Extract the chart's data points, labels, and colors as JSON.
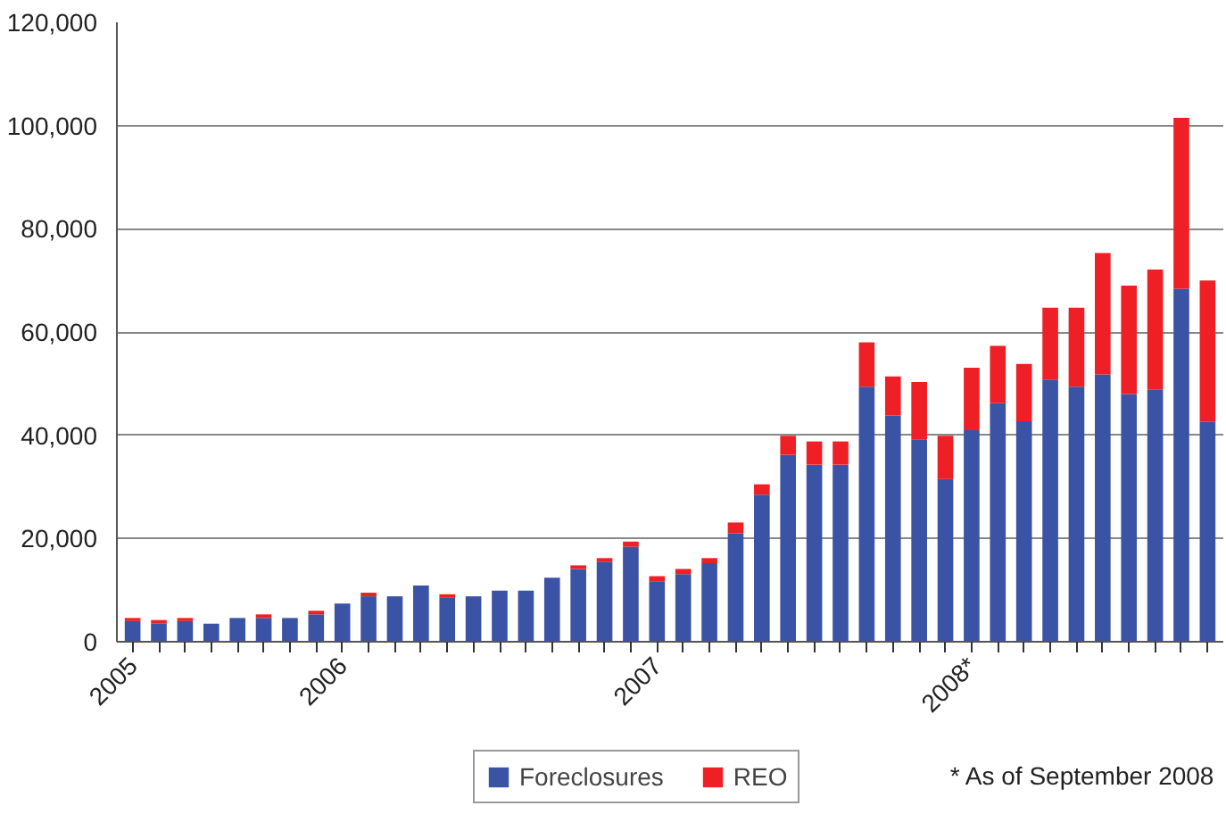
{
  "chart_data": {
    "type": "bar",
    "stacked": true,
    "categories": [
      "2005",
      null,
      null,
      null,
      null,
      null,
      null,
      null,
      "2006",
      null,
      null,
      null,
      null,
      null,
      null,
      null,
      null,
      null,
      null,
      null,
      "2007",
      null,
      null,
      null,
      null,
      null,
      null,
      null,
      null,
      null,
      null,
      null,
      "2008*",
      null,
      null,
      null,
      null,
      null,
      null,
      null,
      null,
      null
    ],
    "series": [
      {
        "name": "Foreclosures",
        "color": "#3a53a4",
        "values": [
          4000,
          3500,
          4000,
          3500,
          4600,
          4600,
          4600,
          5300,
          7400,
          8800,
          8800,
          10900,
          8500,
          8800,
          9900,
          9900,
          12400,
          14100,
          15500,
          18400,
          11700,
          13100,
          15200,
          21000,
          28500,
          36200,
          34300,
          34300,
          49400,
          43800,
          39200,
          31500,
          41000,
          46200,
          42700,
          50800,
          49400,
          51800,
          48000,
          48800,
          68400,
          42600
        ]
      },
      {
        "name": "REO",
        "color": "#ee1f25",
        "values": [
          600,
          700,
          600,
          null,
          null,
          700,
          null,
          700,
          null,
          700,
          null,
          null,
          700,
          null,
          null,
          null,
          null,
          700,
          700,
          1000,
          1000,
          1000,
          1000,
          2100,
          2000,
          3700,
          4500,
          4500,
          8600,
          7600,
          11100,
          8400,
          12100,
          11100,
          11100,
          13900,
          15300,
          23500,
          21000,
          23300,
          33100,
          27400
        ]
      }
    ],
    "ylim": [
      0,
      120000
    ],
    "yticks": [
      {
        "value": 0,
        "label": "0"
      },
      {
        "value": 20000,
        "label": "20,000"
      },
      {
        "value": 40000,
        "label": "40,000"
      },
      {
        "value": 60000,
        "label": "60,000"
      },
      {
        "value": 80000,
        "label": "80,000"
      },
      {
        "value": 100000,
        "label": "100,000"
      },
      {
        "value": 120000,
        "label": "120,000"
      }
    ],
    "grid": "y",
    "legend": "bottom",
    "annotations": [
      "* As of September 2008"
    ]
  }
}
